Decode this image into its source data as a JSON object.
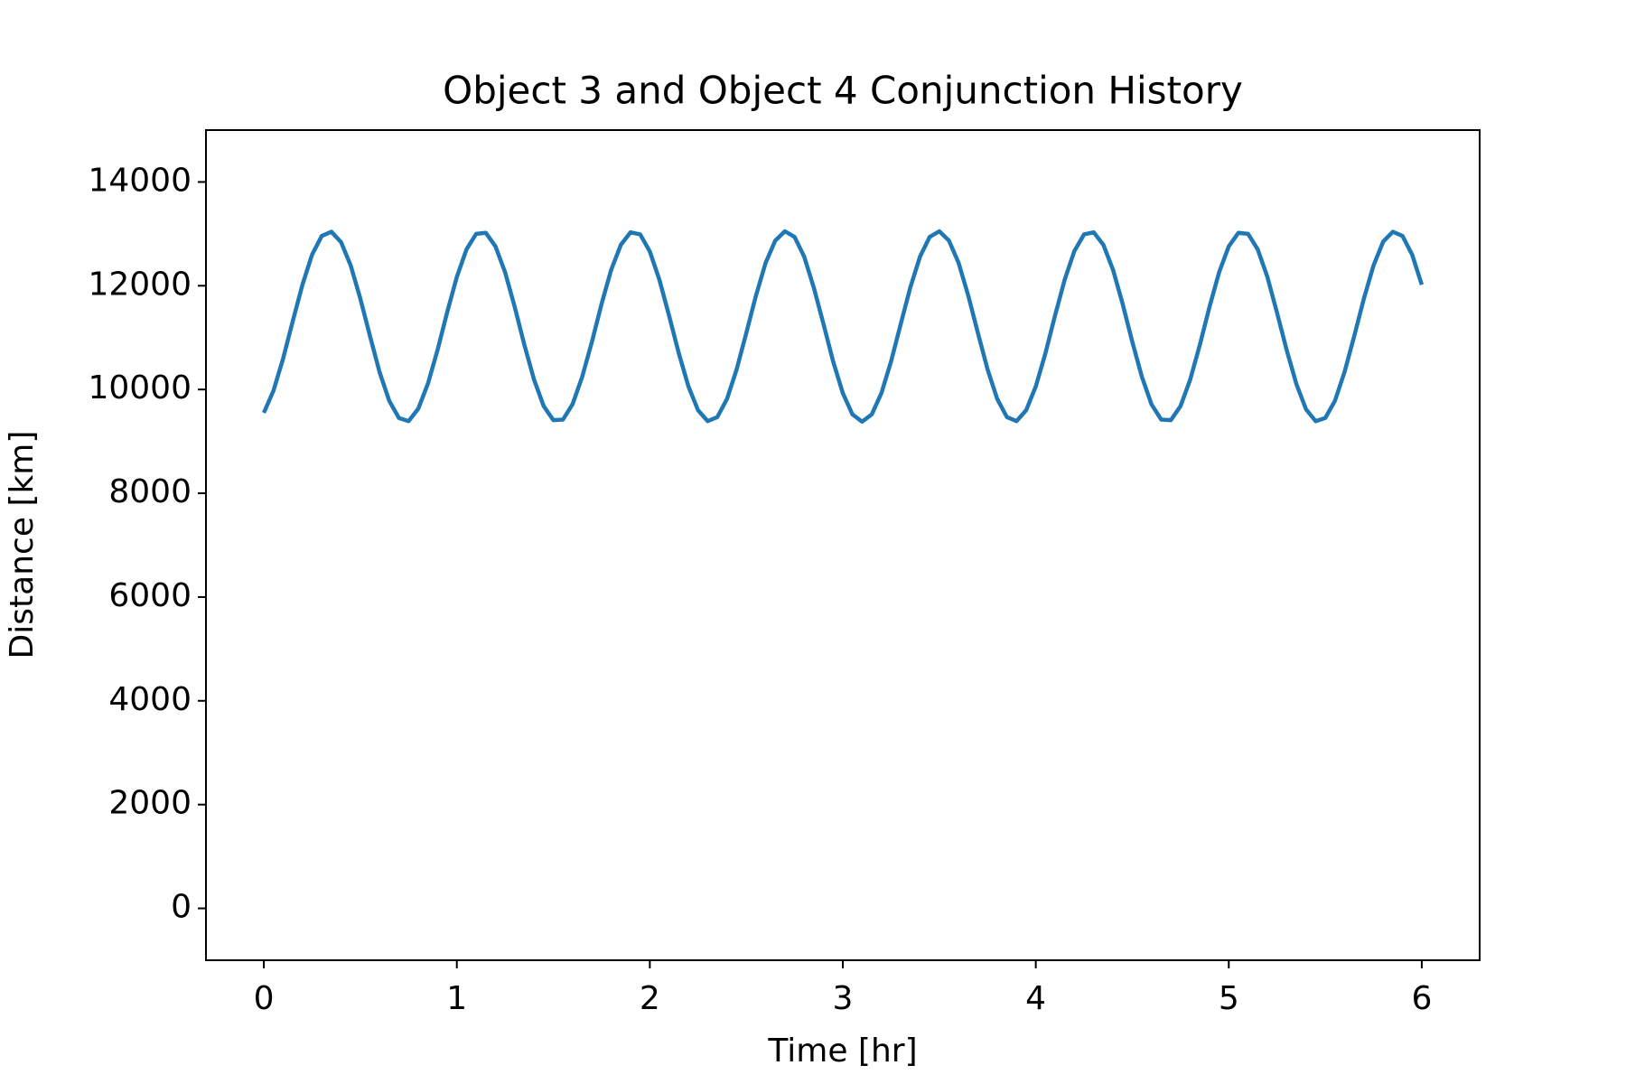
{
  "chart_data": {
    "type": "line",
    "title": "Object 3 and Object 4 Conjunction History",
    "x_label": "Time [hr]",
    "y_label": "Distance [km]",
    "xlim": [
      -0.3,
      6.3
    ],
    "ylim": [
      -1000,
      15000
    ],
    "xticks": [
      0,
      1,
      2,
      3,
      4,
      5,
      6
    ],
    "yticks": [
      0,
      2000,
      4000,
      6000,
      8000,
      10000,
      12000,
      14000
    ],
    "grid": false,
    "x": [
      0,
      0.05,
      0.1,
      0.15,
      0.2,
      0.25,
      0.3,
      0.35,
      0.4,
      0.45,
      0.5,
      0.55,
      0.6,
      0.65,
      0.7,
      0.75,
      0.8,
      0.85,
      0.9,
      0.95,
      1,
      1.05,
      1.1,
      1.15,
      1.2,
      1.25,
      1.3,
      1.35,
      1.4,
      1.45,
      1.5,
      1.55,
      1.6,
      1.65,
      1.7,
      1.75,
      1.8,
      1.85,
      1.9,
      1.95,
      2,
      2.05,
      2.1,
      2.15,
      2.2,
      2.25,
      2.3,
      2.35,
      2.4,
      2.45,
      2.5,
      2.55,
      2.6,
      2.65,
      2.7,
      2.75,
      2.8,
      2.85,
      2.9,
      2.95,
      3,
      3.05,
      3.1,
      3.15,
      3.2,
      3.25,
      3.3,
      3.35,
      3.4,
      3.45,
      3.5,
      3.55,
      3.6,
      3.65,
      3.7,
      3.75,
      3.8,
      3.85,
      3.9,
      3.95,
      4,
      4.05,
      4.1,
      4.15,
      4.2,
      4.25,
      4.3,
      4.35,
      4.4,
      4.45,
      4.5,
      4.55,
      4.6,
      4.65,
      4.7,
      4.75,
      4.8,
      4.85,
      4.9,
      4.95,
      5,
      5.05,
      5.1,
      5.15,
      5.2,
      5.25,
      5.3,
      5.35,
      5.4,
      5.45,
      5.5,
      5.55,
      5.6,
      5.65,
      5.7,
      5.75,
      5.8,
      5.85,
      5.9,
      5.95,
      6
    ],
    "series": [
      {
        "color": "#1f77b4",
        "values": [
          9550,
          9980,
          10600,
          11320,
          12020,
          12600,
          12960,
          13040,
          12840,
          12390,
          11750,
          11030,
          10330,
          9780,
          9450,
          9390,
          9630,
          10110,
          10760,
          11490,
          12170,
          12700,
          13000,
          13020,
          12760,
          12260,
          11590,
          10860,
          10190,
          9680,
          9410,
          9420,
          9720,
          10250,
          10920,
          11650,
          12310,
          12790,
          13030,
          12990,
          12660,
          12110,
          11420,
          10700,
          10060,
          9600,
          9390,
          9470,
          9820,
          10390,
          11090,
          11810,
          12440,
          12870,
          13050,
          12940,
          12560,
          11960,
          11260,
          10540,
          9930,
          9520,
          9380,
          9520,
          9930,
          10540,
          11260,
          11970,
          12560,
          12940,
          13050,
          12870,
          12440,
          11810,
          11090,
          10390,
          9820,
          9470,
          9390,
          9600,
          10060,
          10700,
          11430,
          12120,
          12670,
          12990,
          13030,
          12790,
          12310,
          11650,
          10920,
          10240,
          9710,
          9420,
          9410,
          9680,
          10190,
          10860,
          11590,
          12260,
          12760,
          13020,
          13000,
          12700,
          12170,
          11480,
          10760,
          10110,
          9620,
          9390,
          9450,
          9780,
          10340,
          11030,
          11750,
          12390,
          12850,
          13040,
          12960,
          12600,
          12020
        ]
      }
    ]
  }
}
